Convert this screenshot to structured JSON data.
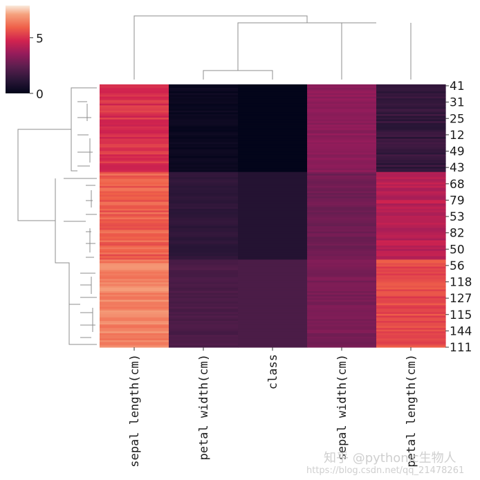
{
  "chart_data": {
    "type": "heatmap",
    "title": "",
    "columns": [
      "sepal length(cm)",
      "petal width(cm)",
      "class",
      "sepal width(cm)",
      "petal length(cm)"
    ],
    "row_tick_labels": [
      "41",
      "31",
      "25",
      "12",
      "49",
      "43",
      "68",
      "79",
      "53",
      "82",
      "50",
      "56",
      "118",
      "127",
      "115",
      "144",
      "111"
    ],
    "colorbar": {
      "ticks": [
        0,
        5
      ],
      "vmin": 0,
      "vmax": 7.9,
      "colormap": "rocket"
    },
    "groups": [
      {
        "rows": 50,
        "values": [
          5.0,
          0.25,
          0.0,
          3.4,
          1.45
        ]
      },
      {
        "rows": 50,
        "values": [
          5.9,
          1.3,
          1.0,
          2.8,
          4.3
        ]
      },
      {
        "rows": 50,
        "values": [
          6.6,
          2.0,
          2.0,
          3.0,
          5.5
        ]
      }
    ],
    "grid": false
  },
  "watermark": {
    "line1": "知乎 @pythonic生物人",
    "line2": "https://blog.csdn.net/qq_21478261"
  }
}
